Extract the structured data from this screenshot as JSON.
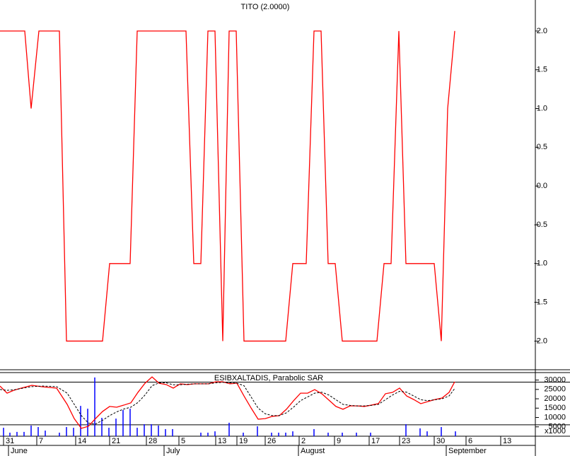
{
  "chart_data": [
    {
      "type": "line",
      "title": "TITO (2.0000)",
      "xlim": [
        0,
        75.7
      ],
      "ylim": [
        -2.37,
        2.4
      ],
      "yticks": [
        {
          "value": 2,
          "label": "2.0"
        },
        1.5,
        {
          "value": 1,
          "label": "1.0"
        },
        0.5,
        {
          "value": 0,
          "label": "0.0"
        },
        -0.5,
        {
          "value": -1,
          "label": "-1.0"
        },
        -1.5,
        {
          "value": -2,
          "label": "-2.0"
        }
      ],
      "series": [
        {
          "color": "#ff0000",
          "x": [
            0,
            3.5,
            4.4,
            5.5,
            8.4,
            9.4,
            14.5,
            15.5,
            18.4,
            19.4,
            26.3,
            27.4,
            28.4,
            29.4,
            30.4,
            31.5,
            32.4,
            33.4,
            34.5,
            40.4,
            41.4,
            43.3,
            44.4,
            45.4,
            46.4,
            47.4,
            48.4,
            53.3,
            54.3,
            55.3,
            56.4,
            57.4,
            61.4,
            62.4,
            63.3,
            64.3
          ],
          "values": [
            2,
            2,
            1,
            2,
            2,
            -2,
            -2,
            -1,
            -1,
            2,
            2,
            -1,
            -1,
            2,
            2,
            -2,
            2,
            2,
            -2,
            -2,
            -1,
            -1,
            2,
            2,
            -1,
            -1,
            -2,
            -2,
            -1,
            -1,
            2,
            -1,
            -1,
            -2,
            1,
            2
          ]
        }
      ]
    },
    {
      "type": "line",
      "title": "ESIBXALTADIS, Parabolic SAR",
      "xlim": [
        0,
        75.7
      ],
      "ylim": [
        0,
        34000
      ],
      "yticks": [
        30000,
        25000,
        20000,
        15000,
        10000,
        5000
      ],
      "y_unit_label": "x1000",
      "hlines": [
        28900,
        6100
      ],
      "xticks": [
        {
          "value": 0.5,
          "label": "31"
        },
        {
          "value": 5.2,
          "label": "7"
        },
        {
          "value": 10.7,
          "label": "14"
        },
        {
          "value": 15.5,
          "label": "21"
        },
        {
          "value": 20.7,
          "label": "28"
        },
        {
          "value": 25.3,
          "label": "5"
        },
        {
          "value": 30.5,
          "label": "13"
        },
        {
          "value": 33.5,
          "label": "19"
        },
        {
          "value": 37.5,
          "label": "26"
        },
        {
          "value": 42.3,
          "label": "2"
        },
        {
          "value": 47.3,
          "label": "9"
        },
        {
          "value": 52.2,
          "label": "17"
        },
        {
          "value": 56.5,
          "label": "23"
        },
        {
          "value": 61.4,
          "label": "30"
        },
        {
          "value": 65.9,
          "label": "6"
        },
        {
          "value": 70.8,
          "label": "13"
        }
      ],
      "months": [
        {
          "value": 1.2,
          "label": "June"
        },
        {
          "value": 23.2,
          "label": "July"
        },
        {
          "value": 42.2,
          "label": "August"
        },
        {
          "value": 63.1,
          "label": "September"
        }
      ],
      "series": [
        {
          "color": "#ff0000",
          "x": [
            0,
            1,
            2,
            3,
            4.5,
            6,
            8,
            9.5,
            10.5,
            11.5,
            12.5,
            13.5,
            14.5,
            15.5,
            16.5,
            17.5,
            18.5,
            19.5,
            20.5,
            21.5,
            22.5,
            23.5,
            24.5,
            25.5,
            26.5,
            27.5,
            28.5,
            29.5,
            30.5,
            31.5,
            32.5,
            33.5,
            34.5,
            35.5,
            36.5,
            37.5,
            38.5,
            39.5,
            40.5,
            41.5,
            42.5,
            43.5,
            44.5,
            45.5,
            46.5,
            47.5,
            48.5,
            49.5,
            50.5,
            51.5,
            52.5,
            53.5,
            54.5,
            55.5,
            56.5,
            57.5,
            58.5,
            59.5,
            60.5,
            61.5,
            62.5,
            63.5,
            64.3
          ],
          "values": [
            26800,
            23000,
            24600,
            25700,
            27200,
            26400,
            25700,
            17000,
            9400,
            4200,
            5300,
            9400,
            13200,
            15900,
            15500,
            16600,
            17800,
            23400,
            28300,
            31700,
            28300,
            27600,
            25700,
            28000,
            27600,
            28000,
            28000,
            28000,
            29100,
            29100,
            28000,
            28300,
            21500,
            15100,
            9100,
            9400,
            10600,
            11000,
            14400,
            18900,
            23000,
            23000,
            24900,
            22700,
            19300,
            15900,
            14400,
            16200,
            16200,
            15900,
            16600,
            17400,
            22700,
            23400,
            25700,
            21500,
            19600,
            17400,
            18500,
            19600,
            20400,
            23400,
            29100
          ]
        },
        {
          "color": "#000000",
          "dashed": true,
          "x": [
            0,
            1,
            2,
            3,
            4.5,
            6,
            8,
            9.5,
            10.5,
            11.5,
            12.5,
            13.5,
            14.5,
            15.5,
            16.5,
            17.5,
            18.5,
            19.5,
            20.5,
            21.5,
            22.5,
            23.5,
            24.5,
            25.5,
            26.5,
            27.5,
            28.5,
            29.5,
            30.5,
            31.5,
            32.5,
            33.5,
            34.5,
            35.5,
            36.5,
            37.5,
            38.5,
            39.5,
            40.5,
            41.5,
            42.5,
            43.5,
            44.5,
            45.5,
            46.5,
            47.5,
            48.5,
            49.5,
            50.5,
            51.5,
            52.5,
            53.5,
            54.5,
            55.5,
            56.5,
            57.5,
            58.5,
            59.5,
            60.5,
            61.5,
            62.5,
            63.5,
            64.3
          ],
          "values": [
            25000,
            24500,
            24800,
            25500,
            26500,
            26800,
            26500,
            23000,
            17000,
            11000,
            7000,
            6500,
            8500,
            11000,
            13000,
            14500,
            15500,
            18000,
            22000,
            27000,
            28500,
            28500,
            27500,
            27500,
            27800,
            28000,
            28000,
            28000,
            28500,
            28800,
            28500,
            28300,
            27000,
            21000,
            15000,
            12000,
            11000,
            11000,
            12500,
            15500,
            19000,
            21000,
            23000,
            23500,
            22000,
            19500,
            17000,
            16500,
            16200,
            16200,
            16500,
            17000,
            19500,
            22000,
            24000,
            23500,
            21500,
            19500,
            19000,
            19500,
            20000,
            21500,
            25500
          ]
        },
        {
          "type": "bar",
          "color": "#0000ff",
          "x": [
            0.5,
            1.4,
            2.4,
            3.4,
            4.4,
            5.4,
            6.4,
            8.4,
            9.4,
            10.4,
            11.4,
            12.4,
            13.4,
            14.4,
            15.4,
            16.4,
            17.4,
            18.4,
            19.4,
            20.4,
            21.4,
            22.4,
            23.4,
            24.4,
            28.4,
            29.4,
            30.4,
            32.4,
            34.4,
            36.4,
            38.4,
            39.4,
            40.4,
            41.4,
            44.4,
            46.4,
            48.4,
            50.4,
            52.4,
            57.4,
            59.4,
            60.4,
            62.4,
            64.4
          ],
          "values": [
            4500,
            1900,
            2300,
            2300,
            5700,
            4900,
            3000,
            1900,
            4900,
            4500,
            16200,
            14700,
            31400,
            9800,
            4500,
            9400,
            14000,
            14700,
            4500,
            6400,
            6400,
            5700,
            3800,
            3800,
            1900,
            1900,
            2600,
            7200,
            1900,
            5300,
            1900,
            1900,
            1900,
            2600,
            3800,
            1900,
            1900,
            1900,
            1900,
            6400,
            4200,
            2600,
            4900,
            2600
          ]
        }
      ]
    }
  ]
}
